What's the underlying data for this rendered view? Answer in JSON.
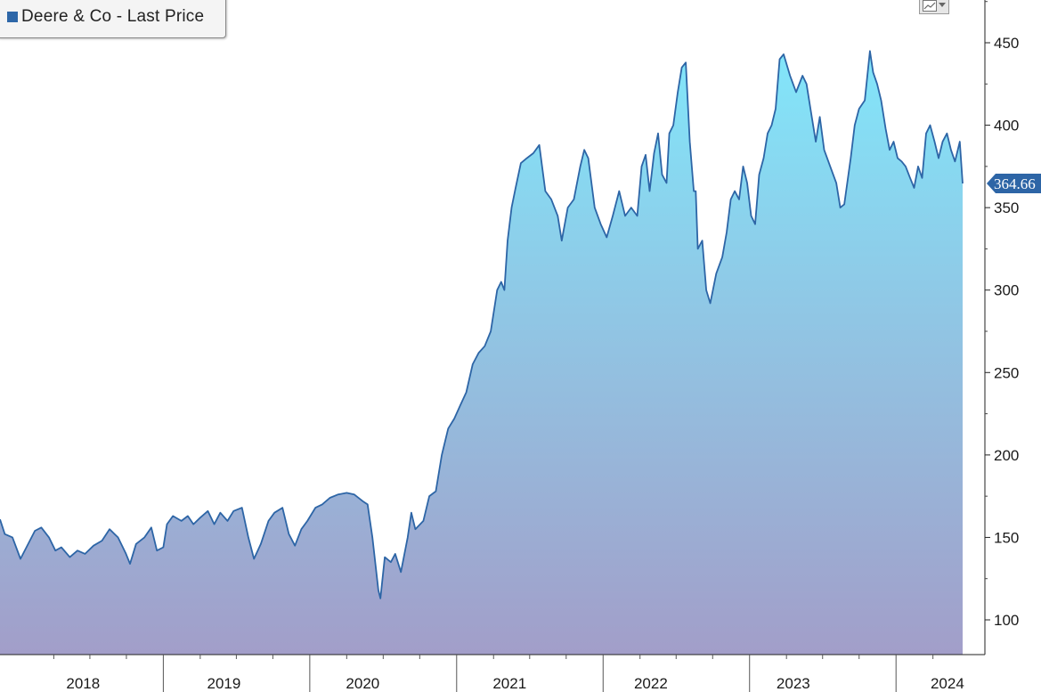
{
  "legend": {
    "label": "Deere & Co - Last Price",
    "color": "#2e67a8"
  },
  "last_price_label": "364.66",
  "colors": {
    "line": "#2d65a6",
    "fill_top": "#82e6fa",
    "fill_bottom": "#a29ec9"
  },
  "chart_toggle": {
    "icon": "line-chart-icon"
  },
  "chart_data": {
    "type": "area",
    "title": "",
    "xlabel": "",
    "ylabel": "",
    "ylim": [
      80,
      475
    ],
    "y_ticks": [
      100,
      150,
      200,
      250,
      300,
      350,
      400,
      450
    ],
    "x_range": [
      "2017-08-20",
      "2024-03-15"
    ],
    "x_tick_labels": [
      "2018",
      "2019",
      "2020",
      "2021",
      "2022",
      "2023",
      "2024"
    ],
    "x_tick_label_dates": [
      "2018-03-15",
      "2019-03-01",
      "2020-02-10",
      "2021-02-10",
      "2022-01-28",
      "2023-01-18",
      "2024-02-06"
    ],
    "year_boundaries": [
      "2018-10-01",
      "2019-10-01",
      "2020-10-01",
      "2021-10-01",
      "2022-10-01",
      "2023-10-01"
    ],
    "grid": false,
    "legend_position": "top-left",
    "series": [
      {
        "name": "Deere & Co - Last Price",
        "last_value": 364.66,
        "points": [
          [
            "2017-08-20",
            161
          ],
          [
            "2017-09-01",
            152
          ],
          [
            "2017-09-20",
            150
          ],
          [
            "2017-10-10",
            137
          ],
          [
            "2017-10-25",
            144
          ],
          [
            "2017-11-15",
            154
          ],
          [
            "2017-12-01",
            156
          ],
          [
            "2017-12-20",
            150
          ],
          [
            "2018-01-05",
            142
          ],
          [
            "2018-01-20",
            144
          ],
          [
            "2018-02-10",
            138
          ],
          [
            "2018-03-01",
            142
          ],
          [
            "2018-03-20",
            140
          ],
          [
            "2018-04-10",
            145
          ],
          [
            "2018-05-01",
            148
          ],
          [
            "2018-05-20",
            155
          ],
          [
            "2018-06-10",
            150
          ],
          [
            "2018-06-30",
            140
          ],
          [
            "2018-07-10",
            134
          ],
          [
            "2018-07-25",
            146
          ],
          [
            "2018-08-15",
            150
          ],
          [
            "2018-09-01",
            156
          ],
          [
            "2018-09-15",
            142
          ],
          [
            "2018-10-01",
            144
          ],
          [
            "2018-10-10",
            158
          ],
          [
            "2018-10-25",
            163
          ],
          [
            "2018-11-15",
            160
          ],
          [
            "2018-12-01",
            163
          ],
          [
            "2018-12-15",
            158
          ],
          [
            "2019-01-01",
            162
          ],
          [
            "2019-01-20",
            166
          ],
          [
            "2019-02-05",
            158
          ],
          [
            "2019-02-20",
            165
          ],
          [
            "2019-03-10",
            160
          ],
          [
            "2019-03-25",
            166
          ],
          [
            "2019-04-15",
            168
          ],
          [
            "2019-05-01",
            150
          ],
          [
            "2019-05-15",
            137
          ],
          [
            "2019-06-01",
            146
          ],
          [
            "2019-06-20",
            160
          ],
          [
            "2019-07-05",
            165
          ],
          [
            "2019-07-25",
            168
          ],
          [
            "2019-08-10",
            152
          ],
          [
            "2019-08-25",
            145
          ],
          [
            "2019-09-10",
            155
          ],
          [
            "2019-09-25",
            160
          ],
          [
            "2019-10-15",
            168
          ],
          [
            "2019-11-01",
            170
          ],
          [
            "2019-11-20",
            174
          ],
          [
            "2019-12-10",
            176
          ],
          [
            "2020-01-01",
            177
          ],
          [
            "2020-01-20",
            176
          ],
          [
            "2020-02-10",
            172
          ],
          [
            "2020-02-22",
            170
          ],
          [
            "2020-03-05",
            150
          ],
          [
            "2020-03-20",
            118
          ],
          [
            "2020-03-25",
            113
          ],
          [
            "2020-04-05",
            138
          ],
          [
            "2020-04-20",
            135
          ],
          [
            "2020-05-01",
            140
          ],
          [
            "2020-05-15",
            129
          ],
          [
            "2020-06-01",
            150
          ],
          [
            "2020-06-10",
            165
          ],
          [
            "2020-06-20",
            155
          ],
          [
            "2020-07-10",
            160
          ],
          [
            "2020-07-25",
            175
          ],
          [
            "2020-08-10",
            178
          ],
          [
            "2020-08-25",
            200
          ],
          [
            "2020-09-10",
            216
          ],
          [
            "2020-09-25",
            222
          ],
          [
            "2020-10-10",
            230
          ],
          [
            "2020-10-25",
            238
          ],
          [
            "2020-11-10",
            255
          ],
          [
            "2020-11-25",
            262
          ],
          [
            "2020-12-10",
            266
          ],
          [
            "2020-12-25",
            275
          ],
          [
            "2021-01-10",
            300
          ],
          [
            "2021-01-20",
            305
          ],
          [
            "2021-01-28",
            300
          ],
          [
            "2021-02-05",
            330
          ],
          [
            "2021-02-15",
            350
          ],
          [
            "2021-02-25",
            362
          ],
          [
            "2021-03-10",
            377
          ],
          [
            "2021-03-25",
            380
          ],
          [
            "2021-04-10",
            383
          ],
          [
            "2021-04-25",
            388
          ],
          [
            "2021-05-10",
            360
          ],
          [
            "2021-05-25",
            355
          ],
          [
            "2021-06-10",
            345
          ],
          [
            "2021-06-20",
            330
          ],
          [
            "2021-07-05",
            350
          ],
          [
            "2021-07-20",
            355
          ],
          [
            "2021-08-05",
            375
          ],
          [
            "2021-08-15",
            385
          ],
          [
            "2021-08-25",
            380
          ],
          [
            "2021-09-10",
            350
          ],
          [
            "2021-09-25",
            340
          ],
          [
            "2021-10-10",
            332
          ],
          [
            "2021-10-25",
            345
          ],
          [
            "2021-11-10",
            360
          ],
          [
            "2021-11-25",
            345
          ],
          [
            "2021-12-10",
            350
          ],
          [
            "2021-12-25",
            345
          ],
          [
            "2022-01-05",
            375
          ],
          [
            "2022-01-15",
            382
          ],
          [
            "2022-01-25",
            360
          ],
          [
            "2022-02-05",
            383
          ],
          [
            "2022-02-15",
            395
          ],
          [
            "2022-02-25",
            370
          ],
          [
            "2022-03-08",
            365
          ],
          [
            "2022-03-15",
            395
          ],
          [
            "2022-03-25",
            400
          ],
          [
            "2022-04-05",
            420
          ],
          [
            "2022-04-15",
            435
          ],
          [
            "2022-04-25",
            438
          ],
          [
            "2022-05-05",
            390
          ],
          [
            "2022-05-15",
            360
          ],
          [
            "2022-05-20",
            360
          ],
          [
            "2022-05-25",
            325
          ],
          [
            "2022-06-05",
            330
          ],
          [
            "2022-06-15",
            300
          ],
          [
            "2022-06-25",
            292
          ],
          [
            "2022-07-10",
            310
          ],
          [
            "2022-07-25",
            320
          ],
          [
            "2022-08-05",
            335
          ],
          [
            "2022-08-15",
            355
          ],
          [
            "2022-08-25",
            360
          ],
          [
            "2022-09-05",
            355
          ],
          [
            "2022-09-15",
            375
          ],
          [
            "2022-09-25",
            365
          ],
          [
            "2022-10-05",
            345
          ],
          [
            "2022-10-15",
            340
          ],
          [
            "2022-10-25",
            370
          ],
          [
            "2022-11-05",
            380
          ],
          [
            "2022-11-15",
            395
          ],
          [
            "2022-11-25",
            400
          ],
          [
            "2022-12-05",
            410
          ],
          [
            "2022-12-15",
            440
          ],
          [
            "2022-12-25",
            443
          ],
          [
            "2023-01-10",
            430
          ],
          [
            "2023-01-25",
            420
          ],
          [
            "2023-02-10",
            430
          ],
          [
            "2023-02-20",
            425
          ],
          [
            "2023-03-05",
            405
          ],
          [
            "2023-03-15",
            390
          ],
          [
            "2023-03-25",
            405
          ],
          [
            "2023-04-05",
            385
          ],
          [
            "2023-04-20",
            375
          ],
          [
            "2023-05-05",
            365
          ],
          [
            "2023-05-15",
            350
          ],
          [
            "2023-05-25",
            352
          ],
          [
            "2023-06-10",
            380
          ],
          [
            "2023-06-20",
            400
          ],
          [
            "2023-07-01",
            410
          ],
          [
            "2023-07-15",
            415
          ],
          [
            "2023-07-28",
            445
          ],
          [
            "2023-08-05",
            432
          ],
          [
            "2023-08-15",
            425
          ],
          [
            "2023-08-25",
            415
          ],
          [
            "2023-09-05",
            398
          ],
          [
            "2023-09-15",
            385
          ],
          [
            "2023-09-25",
            390
          ],
          [
            "2023-10-05",
            380
          ],
          [
            "2023-10-15",
            378
          ],
          [
            "2023-10-25",
            375
          ],
          [
            "2023-11-05",
            368
          ],
          [
            "2023-11-15",
            362
          ],
          [
            "2023-11-25",
            375
          ],
          [
            "2023-12-05",
            368
          ],
          [
            "2023-12-15",
            395
          ],
          [
            "2023-12-25",
            400
          ],
          [
            "2024-01-05",
            390
          ],
          [
            "2024-01-15",
            380
          ],
          [
            "2024-01-25",
            390
          ],
          [
            "2024-02-05",
            395
          ],
          [
            "2024-02-15",
            385
          ],
          [
            "2024-02-25",
            378
          ],
          [
            "2024-03-08",
            390
          ],
          [
            "2024-03-15",
            364.66
          ]
        ]
      }
    ]
  }
}
